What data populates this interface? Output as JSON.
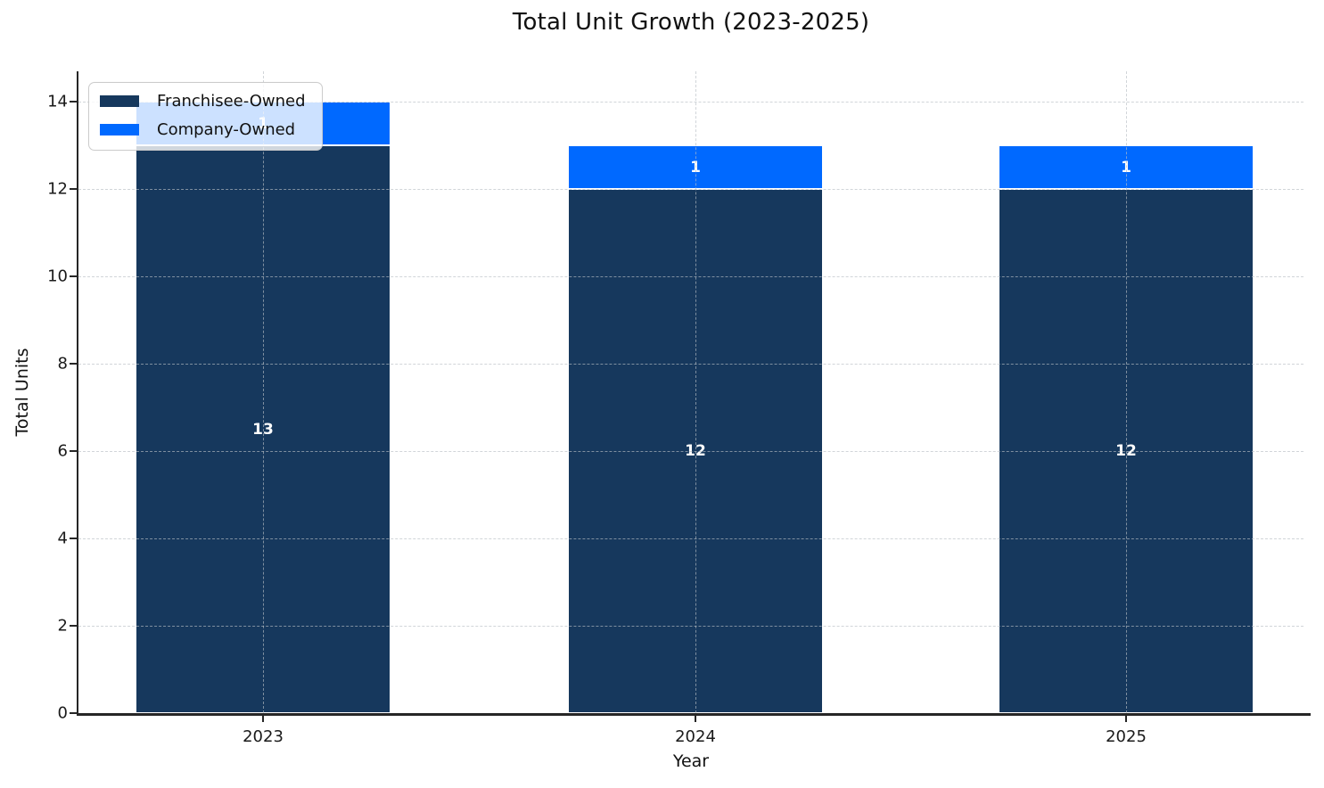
{
  "chart_data": {
    "type": "bar",
    "stacked": true,
    "title": "Total Unit Growth (2023-2025)",
    "xlabel": "Year",
    "ylabel": "Total Units",
    "categories": [
      "2023",
      "2024",
      "2025"
    ],
    "series": [
      {
        "name": "Franchisee-Owned",
        "color": "#16385d",
        "values": [
          13,
          12,
          12
        ]
      },
      {
        "name": "Company-Owned",
        "color": "#0069ff",
        "values": [
          1,
          1,
          1
        ]
      }
    ],
    "totals": [
      14,
      13,
      13
    ],
    "bar_labels": true,
    "bar_label_color": "#ffffff",
    "ylim": [
      0,
      14.7
    ],
    "yticks": [
      0,
      2,
      4,
      6,
      8,
      10,
      12,
      14
    ],
    "grid": true,
    "grid_style": "dashed",
    "grid_over_bars": true,
    "legend_position": "upper-left",
    "spine_color": "#262626",
    "background_color": "#ffffff"
  }
}
